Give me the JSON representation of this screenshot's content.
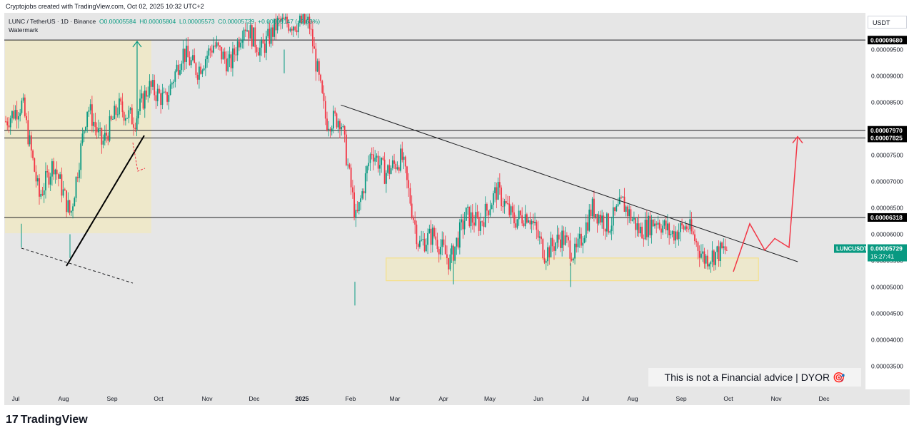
{
  "header": {
    "creator": "Cryptojobs created with TradingView.com, Oct 02, 2025 10:32 UTC+2"
  },
  "legend": {
    "symbol": "LUNC / TetherUS · 1D · Binance",
    "open": "O0.00005584",
    "high": "H0.00005804",
    "low": "L0.00005573",
    "close": "C0.00005729",
    "change": "+0.00000147 (+2.63%)",
    "watermark": "Watermark"
  },
  "currency_button": "USDT",
  "price_tag": {
    "symbol": "LUNCUSDT",
    "price": "0.00005729",
    "countdown": "15:27:41"
  },
  "disclaimer": "This is not a Financial advice | DYOR 🎯",
  "footer": {
    "logo_mark": "17",
    "brand": "TradingView"
  },
  "colors": {
    "up": "#089981",
    "down": "#f23645",
    "zone": "#f5e08a",
    "projection": "#f23645",
    "background": "#e6e6e6"
  },
  "chart_data": {
    "type": "candlestick",
    "title": "LUNC / TetherUS · 1D · Binance",
    "xlabel": "",
    "ylabel": "",
    "x_ticks": [
      "Jul",
      "Aug",
      "Sep",
      "Oct",
      "Nov",
      "Dec",
      "2025",
      "Feb",
      "Mar",
      "Apr",
      "May",
      "Jun",
      "Jul",
      "Aug",
      "Sep",
      "Oct",
      "Nov",
      "Dec"
    ],
    "y_ticks": [
      "0.00009500",
      "0.00009000",
      "0.00008500",
      "0.00007500",
      "0.00007000",
      "0.00006500",
      "0.00006000",
      "0.00005500",
      "0.00005000",
      "0.00004500",
      "0.00004000",
      "0.00003500"
    ],
    "ylim": [
      3.25e-05,
      0.0001
    ],
    "horizontal_levels": [
      {
        "label": "0.00009680",
        "value": 9.68e-05
      },
      {
        "label": "0.00007970",
        "value": 7.97e-05
      },
      {
        "label": "0.00007825",
        "value": 7.825e-05
      },
      {
        "label": "0.00006318",
        "value": 6.318e-05
      }
    ],
    "current_price": 5.729e-05,
    "support_zone": {
      "from": "2025-03",
      "to": "2025-10",
      "low": 5.12e-05,
      "high": 5.55e-05
    },
    "descending_trendline": {
      "start": [
        "2025-01",
        8.45e-05
      ],
      "end": [
        "2025-10",
        5.48e-05
      ]
    },
    "price_path_monthly": [
      {
        "month": "2024-07",
        "open": 8.14e-05,
        "high": 8.75e-05,
        "low": 5.75e-05,
        "close": 7.35e-05
      },
      {
        "month": "2024-08",
        "open": 7.35e-05,
        "high": 9.55e-05,
        "low": 5.55e-05,
        "close": 7.7e-05
      },
      {
        "month": "2024-09",
        "open": 7.7e-05,
        "high": 9e-05,
        "low": 7.2e-05,
        "close": 8.8e-05
      },
      {
        "month": "2024-10",
        "open": 8.8e-05,
        "high": 0.0001,
        "low": 8.3e-05,
        "close": 9.1e-05
      },
      {
        "month": "2024-11",
        "open": 9.1e-05,
        "high": 0.0001,
        "low": 8e-05,
        "close": 0.0001
      },
      {
        "month": "2024-12",
        "open": 0.0001,
        "high": 0.0001,
        "low": 9.05e-05,
        "close": 0.0001
      },
      {
        "month": "2025-01",
        "open": 0.0001,
        "high": 0.0001,
        "low": 8.05e-05,
        "close": 8.2e-05
      },
      {
        "month": "2025-02",
        "open": 8.2e-05,
        "high": 8.3e-05,
        "low": 4.65e-05,
        "close": 7.15e-05
      },
      {
        "month": "2025-03",
        "open": 7.15e-05,
        "high": 7.7e-05,
        "low": 5.5e-05,
        "close": 6e-05
      },
      {
        "month": "2025-04",
        "open": 6e-05,
        "high": 6.6e-05,
        "low": 5.05e-05,
        "close": 6.2e-05
      },
      {
        "month": "2025-05",
        "open": 6.2e-05,
        "high": 7.35e-05,
        "low": 6.05e-05,
        "close": 6.4e-05
      },
      {
        "month": "2025-06",
        "open": 6.4e-05,
        "high": 6.5e-05,
        "low": 5e-05,
        "close": 5.6e-05
      },
      {
        "month": "2025-07",
        "open": 5.6e-05,
        "high": 7.25e-05,
        "low": 5.5e-05,
        "close": 6.6e-05
      },
      {
        "month": "2025-08",
        "open": 6.6e-05,
        "high": 6.7e-05,
        "low": 5.6e-05,
        "close": 6e-05
      },
      {
        "month": "2025-09",
        "open": 6e-05,
        "high": 6.3e-05,
        "low": 5.25e-05,
        "close": 5.73e-05
      }
    ],
    "projection_path": [
      [
        "2025-10",
        5.29e-05
      ],
      [
        "2025-10",
        6.2e-05
      ],
      [
        "2025-11",
        5.7e-05
      ],
      [
        "2025-11",
        5.92e-05
      ],
      [
        "2025-11",
        5.75e-05
      ],
      [
        "2025-12",
        7.85e-05
      ]
    ]
  }
}
